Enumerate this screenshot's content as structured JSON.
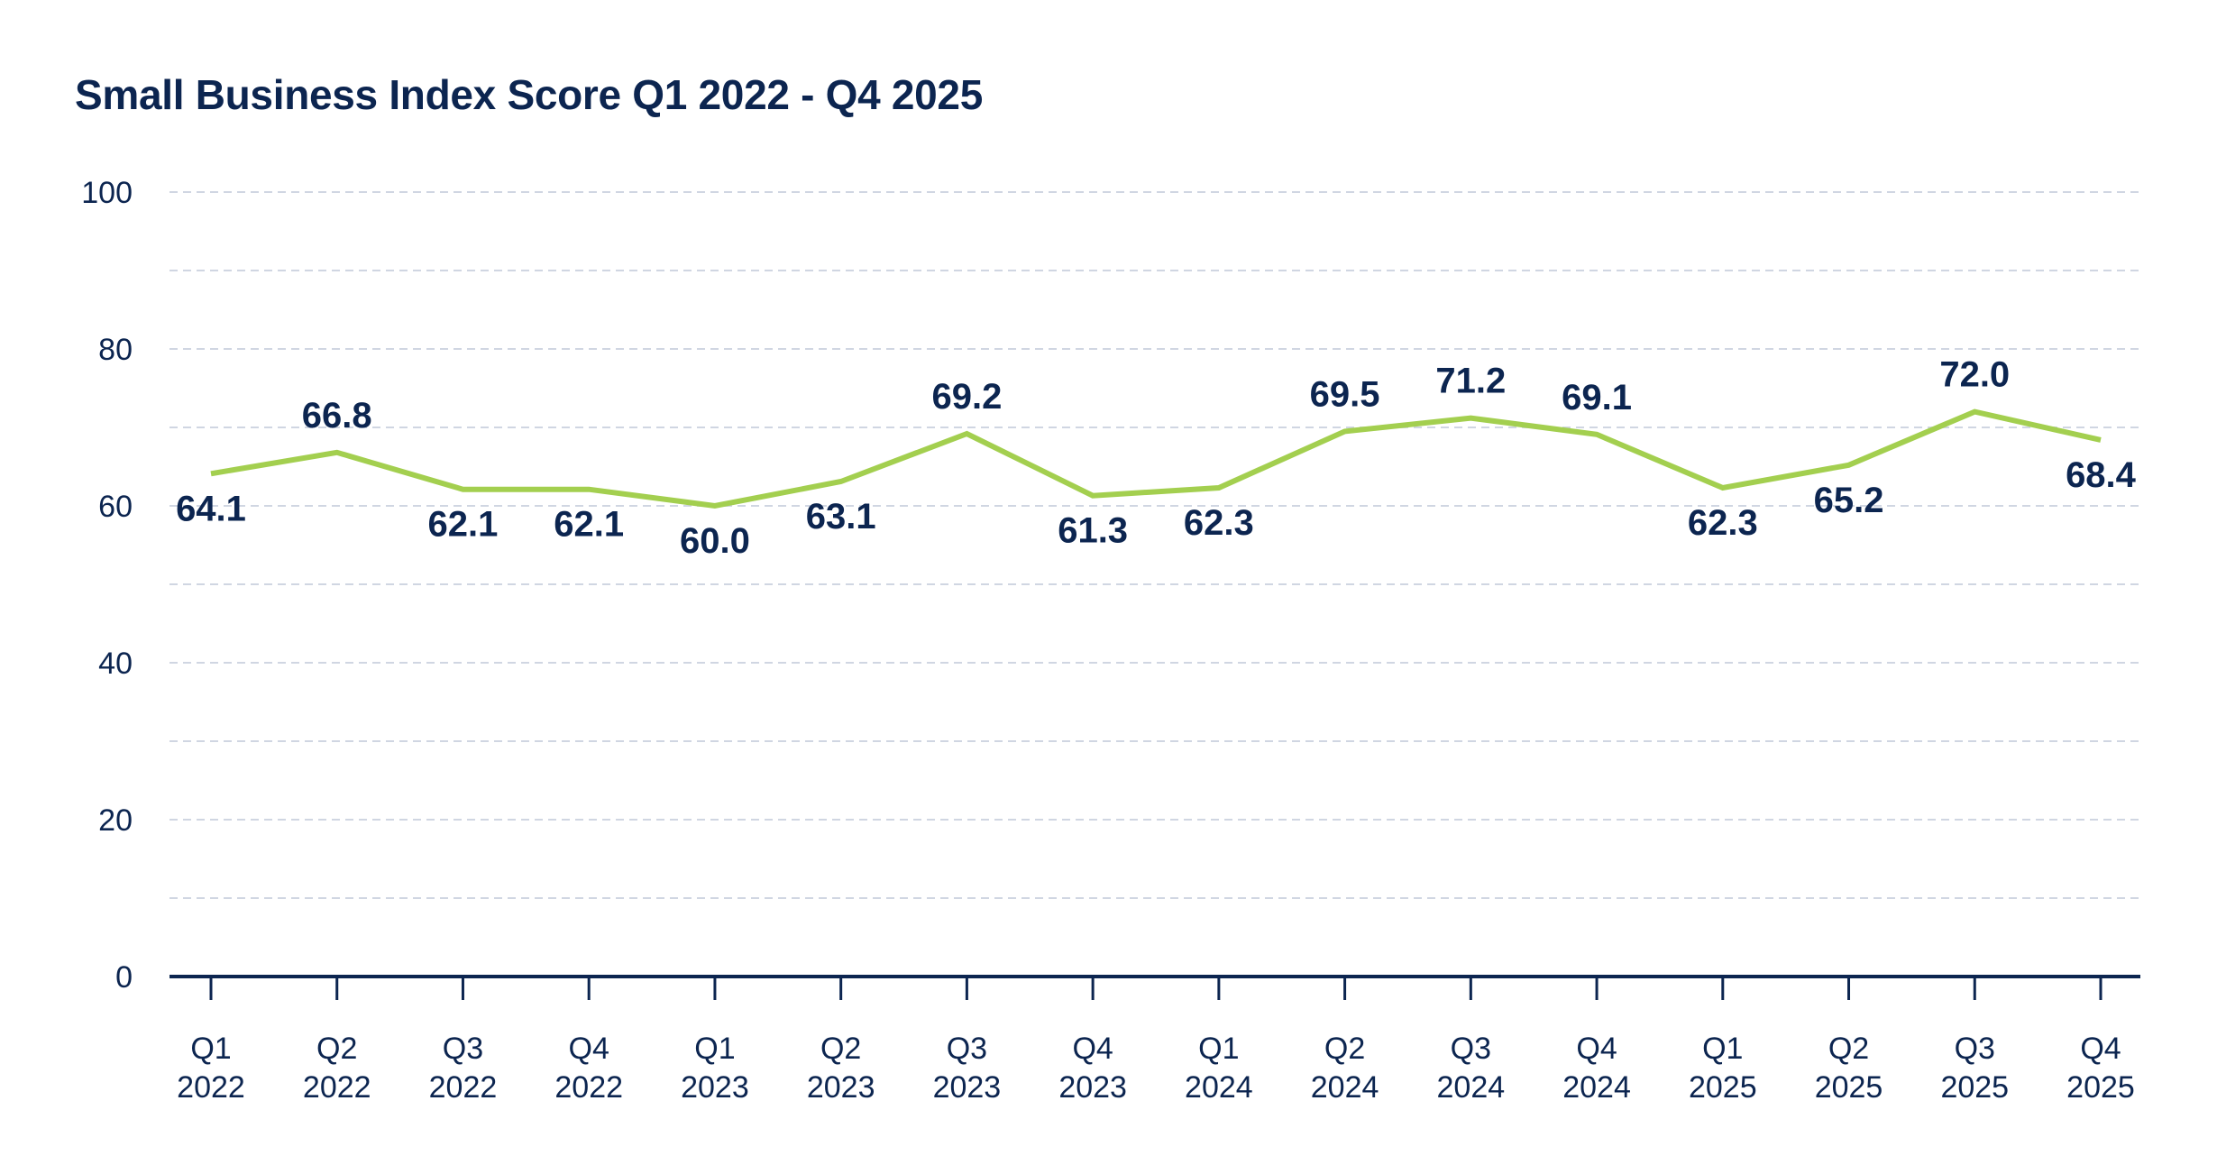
{
  "title": "Small Business Index Score Q1 2022 - Q4 2025",
  "colors": {
    "line": "#a3cf4f",
    "text": "#0c2550",
    "axis": "#0c2550",
    "grid": "#d0d6e2"
  },
  "chart_data": {
    "type": "line",
    "title": "Small Business Index Score Q1 2022 - Q4 2025",
    "xlabel": "",
    "ylabel": "",
    "ylim": [
      0,
      100
    ],
    "yticks": [
      0,
      20,
      40,
      60,
      80,
      100
    ],
    "minor_gridlines": [
      10,
      30,
      50,
      70,
      90
    ],
    "grid": true,
    "legend": null,
    "categories": [
      {
        "quarter": "Q1",
        "year": "2022"
      },
      {
        "quarter": "Q2",
        "year": "2022"
      },
      {
        "quarter": "Q3",
        "year": "2022"
      },
      {
        "quarter": "Q4",
        "year": "2022"
      },
      {
        "quarter": "Q1",
        "year": "2023"
      },
      {
        "quarter": "Q2",
        "year": "2023"
      },
      {
        "quarter": "Q3",
        "year": "2023"
      },
      {
        "quarter": "Q4",
        "year": "2023"
      },
      {
        "quarter": "Q1",
        "year": "2024"
      },
      {
        "quarter": "Q2",
        "year": "2024"
      },
      {
        "quarter": "Q3",
        "year": "2024"
      },
      {
        "quarter": "Q4",
        "year": "2024"
      },
      {
        "quarter": "Q1",
        "year": "2025"
      },
      {
        "quarter": "Q2",
        "year": "2025"
      },
      {
        "quarter": "Q3",
        "year": "2025"
      },
      {
        "quarter": "Q4",
        "year": "2025"
      }
    ],
    "series": [
      {
        "name": "Small Business Index Score",
        "values": [
          64.1,
          66.8,
          62.1,
          62.1,
          60.0,
          63.1,
          69.2,
          61.3,
          62.3,
          69.5,
          71.2,
          69.1,
          62.3,
          65.2,
          72.0,
          68.4
        ],
        "labels": [
          "64.1",
          "66.8",
          "62.1",
          "62.1",
          "60.0",
          "63.1",
          "69.2",
          "61.3",
          "62.3",
          "69.5",
          "71.2",
          "69.1",
          "62.3",
          "65.2",
          "72.0",
          "68.4"
        ],
        "label_positions": [
          "below",
          "above",
          "below",
          "below",
          "below",
          "below",
          "above",
          "below",
          "below",
          "above",
          "above",
          "above",
          "below",
          "below",
          "above",
          "below"
        ]
      }
    ]
  }
}
